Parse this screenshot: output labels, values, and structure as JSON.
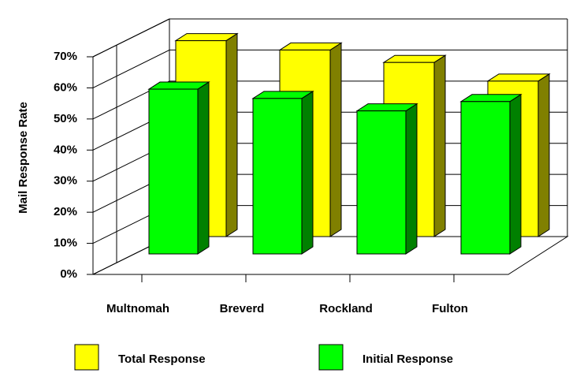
{
  "chart_data": {
    "type": "bar3d",
    "y_label": "Mail Response Rate",
    "categories": [
      "Multnomah",
      "Breverd",
      "Rockland",
      "Fulton"
    ],
    "series": [
      {
        "name": "Total Response",
        "color": "#ffff00",
        "values": [
          63,
          60,
          56,
          50
        ]
      },
      {
        "name": "Initial Response",
        "color": "#00ff00",
        "values": [
          53,
          50,
          46,
          49
        ]
      }
    ],
    "ylim": [
      0,
      70
    ],
    "yticks": [
      {
        "value": 0,
        "label": "0%"
      },
      {
        "value": 10,
        "label": "10%"
      },
      {
        "value": 20,
        "label": "20%"
      },
      {
        "value": 30,
        "label": "30%"
      },
      {
        "value": 40,
        "label": "40%"
      },
      {
        "value": 50,
        "label": "50%"
      },
      {
        "value": 60,
        "label": "60%"
      },
      {
        "value": 70,
        "label": "70%"
      }
    ],
    "grid": true
  }
}
